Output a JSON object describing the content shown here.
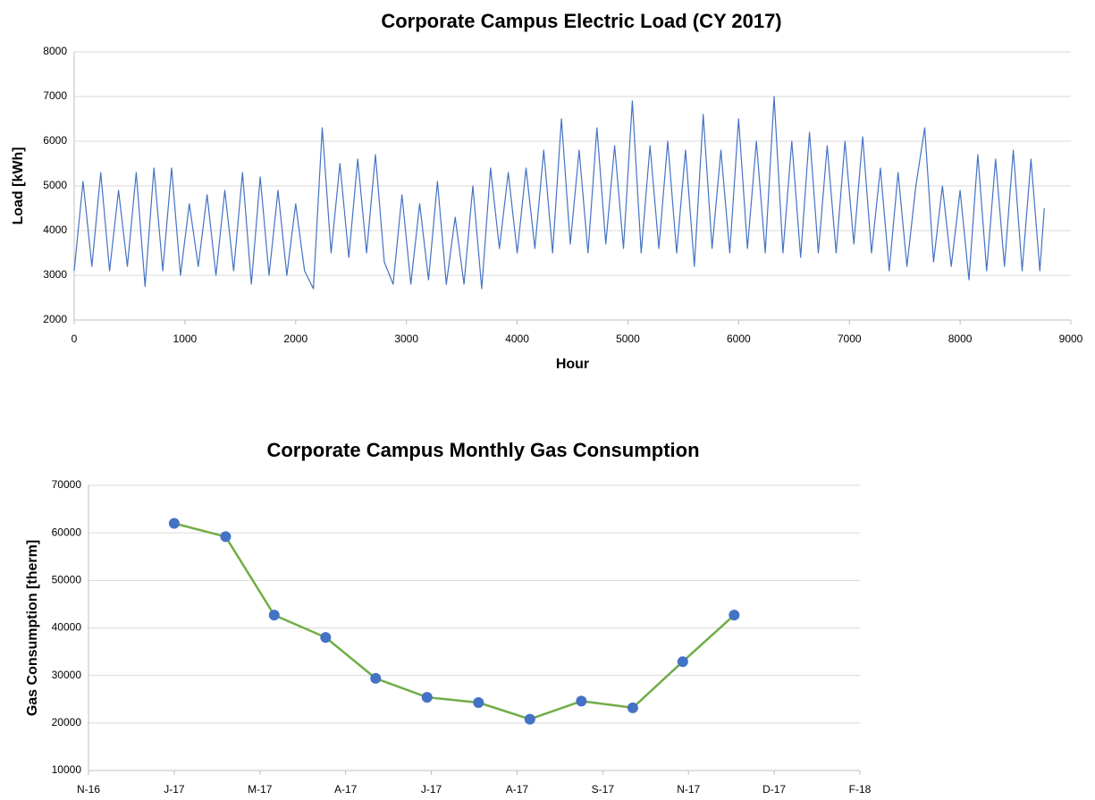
{
  "chart_data": [
    {
      "type": "line",
      "title": "Corporate Campus Electric Load (CY 2017)",
      "x_label": "Hour",
      "y_label": "Load [kWh]",
      "x": [
        0,
        80,
        160,
        240,
        320,
        400,
        480,
        560,
        640,
        720,
        800,
        880,
        960,
        1040,
        1120,
        1200,
        1280,
        1360,
        1440,
        1520,
        1600,
        1680,
        1760,
        1840,
        1920,
        2000,
        2080,
        2160,
        2240,
        2320,
        2400,
        2480,
        2560,
        2640,
        2720,
        2800,
        2880,
        2960,
        3040,
        3120,
        3200,
        3280,
        3360,
        3440,
        3520,
        3600,
        3680,
        3760,
        3840,
        3920,
        4000,
        4080,
        4160,
        4240,
        4320,
        4400,
        4480,
        4560,
        4640,
        4720,
        4800,
        4880,
        4960,
        5040,
        5120,
        5200,
        5280,
        5360,
        5440,
        5520,
        5600,
        5680,
        5760,
        5840,
        5920,
        6000,
        6080,
        6160,
        6240,
        6320,
        6400,
        6480,
        6560,
        6640,
        6720,
        6800,
        6880,
        6960,
        7040,
        7120,
        7200,
        7280,
        7360,
        7440,
        7520,
        7600,
        7680,
        7760,
        7840,
        7920,
        8000,
        8080,
        8160,
        8240,
        8320,
        8400,
        8480,
        8560,
        8640,
        8720,
        8760
      ],
      "values": [
        3100,
        5100,
        3200,
        5300,
        3100,
        4900,
        3200,
        5300,
        2750,
        5400,
        3100,
        5400,
        3000,
        4600,
        3200,
        4800,
        3000,
        4900,
        3100,
        5300,
        2800,
        5200,
        3000,
        4900,
        3000,
        4600,
        3100,
        2700,
        6300,
        3500,
        5500,
        3400,
        5600,
        3500,
        5700,
        3300,
        2800,
        4800,
        2800,
        4600,
        2900,
        5100,
        2800,
        4300,
        2800,
        5000,
        2700,
        5400,
        3600,
        5300,
        3500,
        5400,
        3600,
        5800,
        3500,
        6500,
        3700,
        5800,
        3500,
        6300,
        3700,
        5900,
        3600,
        6900,
        3500,
        5900,
        3600,
        6000,
        3500,
        5800,
        3200,
        6600,
        3600,
        5800,
        3500,
        6500,
        3600,
        6000,
        3500,
        7000,
        3500,
        6000,
        3400,
        6200,
        3500,
        5900,
        3500,
        6000,
        3700,
        6100,
        3500,
        5400,
        3100,
        5300,
        3200,
        5000,
        6300,
        3300,
        5000,
        3200,
        4900,
        2900,
        5700,
        3100,
        5600,
        3200,
        5800,
        3100,
        5600,
        3100,
        4500
      ],
      "color": "#4472c4",
      "xlim": [
        0,
        9000
      ],
      "xticks": [
        0,
        1000,
        2000,
        3000,
        4000,
        5000,
        6000,
        7000,
        8000,
        9000
      ],
      "ylim": [
        2000,
        8000
      ],
      "yticks": [
        2000,
        3000,
        4000,
        5000,
        6000,
        7000,
        8000
      ],
      "grid": true
    },
    {
      "type": "line",
      "title": "Corporate Campus Monthly Gas Consumption",
      "y_label": "Gas Consumption [therm]",
      "x": [
        60,
        96,
        130,
        166,
        201,
        237,
        273,
        309,
        345,
        381,
        416,
        452
      ],
      "values": [
        62000,
        59200,
        42700,
        38000,
        29400,
        25400,
        24300,
        20800,
        24600,
        23200,
        32900,
        42700
      ],
      "color": "#70ad47",
      "marker_color": "#4472c4",
      "xlim": [
        0,
        540
      ],
      "xticks": [
        {
          "value": 0,
          "label": "N-16"
        },
        {
          "value": 60,
          "label": "J-17"
        },
        {
          "value": 120,
          "label": "M-17"
        },
        {
          "value": 180,
          "label": "A-17"
        },
        {
          "value": 240,
          "label": "J-17"
        },
        {
          "value": 300,
          "label": "A-17"
        },
        {
          "value": 360,
          "label": "S-17"
        },
        {
          "value": 420,
          "label": "N-17"
        },
        {
          "value": 480,
          "label": "D-17"
        },
        {
          "value": 540,
          "label": "F-18"
        }
      ],
      "ylim": [
        10000,
        70000
      ],
      "yticks": [
        10000,
        20000,
        30000,
        40000,
        50000,
        60000,
        70000
      ],
      "grid": true
    }
  ]
}
